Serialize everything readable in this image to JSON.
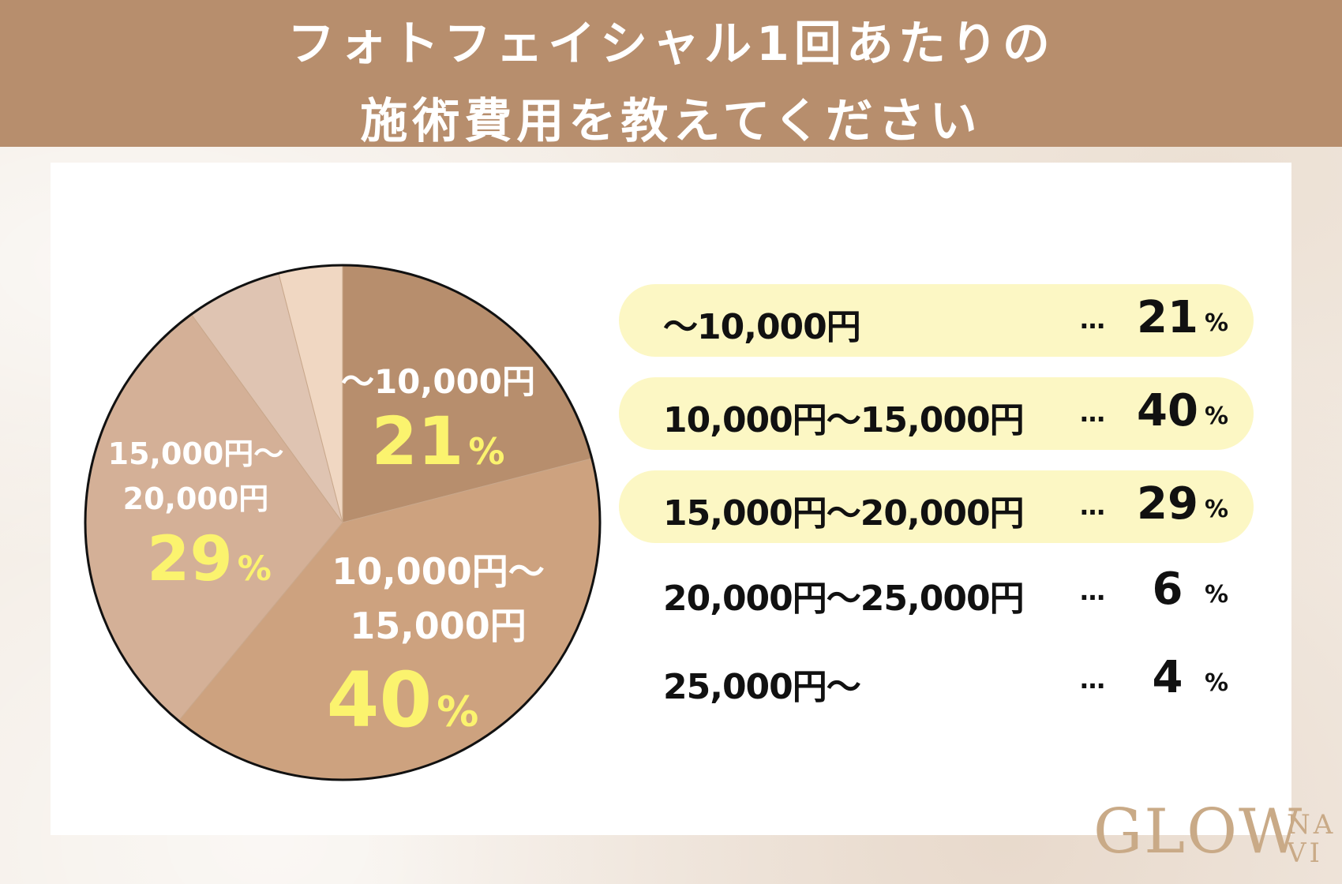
{
  "header": {
    "title_line1": "フォトフェイシャル1回あたりの",
    "title_line2": "施術費用を教えてください"
  },
  "logo": {
    "text": "GLOW",
    "sub1": "NA",
    "sub2": "VI"
  },
  "legend": {
    "dots": "…",
    "percent_sign": "%"
  },
  "chart_data": {
    "type": "pie",
    "title": "フォトフェイシャル1回あたりの施術費用を教えてください",
    "unit": "%",
    "start_angle_deg": 0,
    "direction": "clockwise",
    "slices": [
      {
        "label": "〜10,000円",
        "value": 21,
        "color": "#b78e6d",
        "highlight": true,
        "pie_label": [
          "〜10,000円"
        ]
      },
      {
        "label": "10,000円〜15,000円",
        "value": 40,
        "color": "#cda27f",
        "highlight": true,
        "pie_label": [
          "10,000円〜",
          "15,000円"
        ]
      },
      {
        "label": "15,000円〜20,000円",
        "value": 29,
        "color": "#d4b097",
        "highlight": true,
        "pie_label": [
          "15,000円〜",
          "20,000円"
        ]
      },
      {
        "label": "20,000円〜25,000円",
        "value": 6,
        "color": "#dfc4b2",
        "highlight": false,
        "pie_label": []
      },
      {
        "label": "25,000円〜",
        "value": 4,
        "color": "#f0d7c2",
        "highlight": false,
        "pie_label": []
      }
    ],
    "label_color": "#ffffff",
    "value_color": "#fbf36e"
  }
}
